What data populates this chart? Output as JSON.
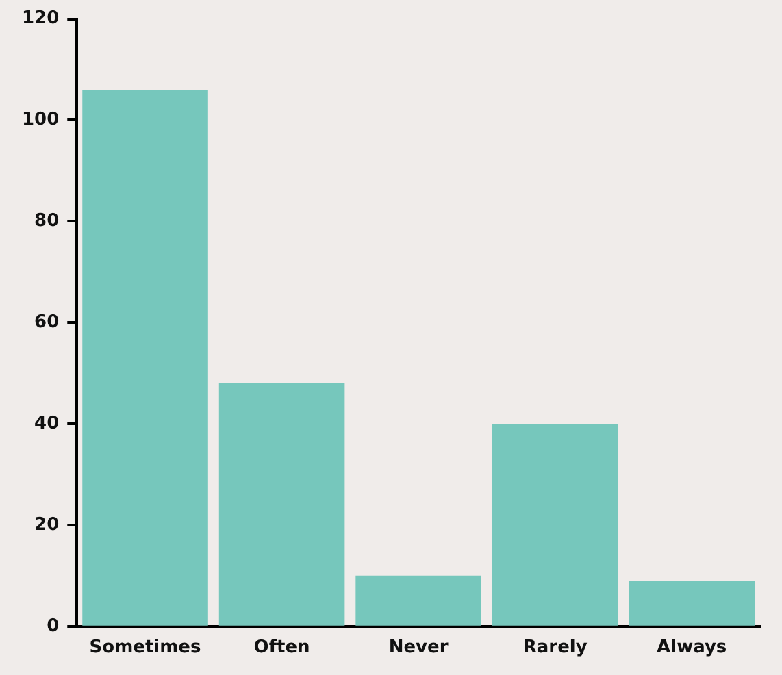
{
  "chart_data": {
    "type": "bar",
    "categories": [
      "Sometimes",
      "Often",
      "Never",
      "Rarely",
      "Always"
    ],
    "values": [
      106,
      48,
      10,
      40,
      9
    ],
    "color": "#76c7bc",
    "ylim": [
      0,
      120
    ],
    "yticks": [
      0,
      20,
      40,
      60,
      80,
      100,
      120
    ],
    "grid": false,
    "legend": false
  }
}
